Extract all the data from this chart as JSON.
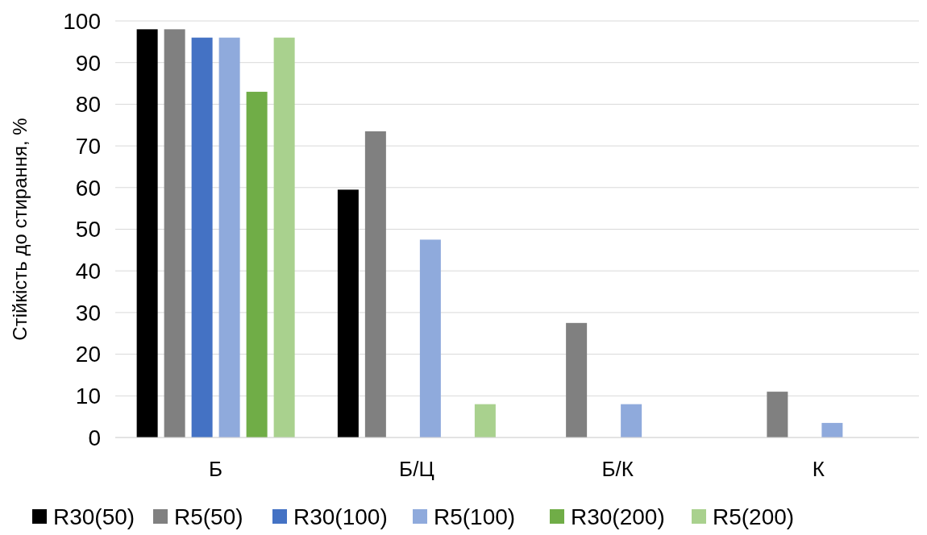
{
  "chart_data": {
    "type": "bar",
    "ylabel": "Стійкість до стирання, %",
    "categories": [
      "Б",
      "Б/Ц",
      "Б/К",
      "К"
    ],
    "series": [
      {
        "name": "R30(50)",
        "color": "#000000",
        "values": [
          98,
          59.5,
          null,
          null
        ]
      },
      {
        "name": "R5(50)",
        "color": "#808080",
        "values": [
          98,
          73.5,
          27.5,
          11
        ]
      },
      {
        "name": "R30(100)",
        "color": "#4472c4",
        "values": [
          96,
          null,
          null,
          null
        ]
      },
      {
        "name": "R5(100)",
        "color": "#8faadc",
        "values": [
          96,
          47.5,
          8,
          3.5
        ]
      },
      {
        "name": "R30(200)",
        "color": "#70ad47",
        "values": [
          83,
          null,
          null,
          null
        ]
      },
      {
        "name": "R5(200)",
        "color": "#a9d18e",
        "values": [
          96,
          8,
          null,
          null
        ]
      }
    ],
    "ylim": [
      0,
      100
    ],
    "yticks": [
      0,
      10,
      20,
      30,
      40,
      50,
      60,
      70,
      80,
      90,
      100
    ],
    "grid": "y",
    "legend": "bottom"
  }
}
